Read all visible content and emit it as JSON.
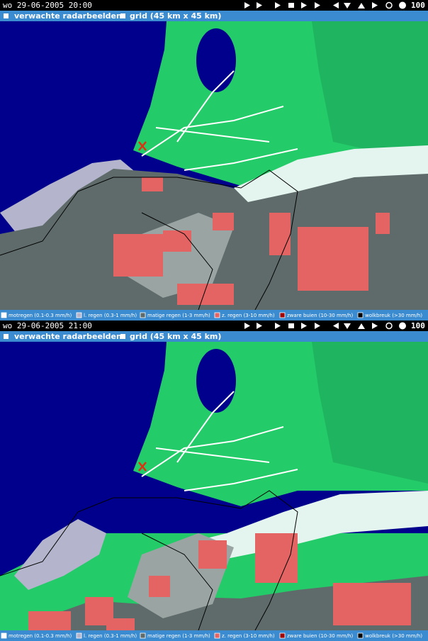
{
  "panels": [
    {
      "timestamp": "wo 29-06-2005 20:00",
      "zoom": "100",
      "tabs": [
        "verwachte radarbeelden",
        "grid (45 km x 45 km)"
      ],
      "legend": [
        {
          "label": "motregen (0.1-0.3 mm/h)",
          "color": "#ffffff"
        },
        {
          "label": "l. regen (0.3-1 mm/h)",
          "color": "#b4b4cc"
        },
        {
          "label": "matige regen (1-3 mm/h)",
          "color": "#5f6b6a"
        },
        {
          "label": "z. regen (3-10 mm/h)",
          "color": "#e46464"
        },
        {
          "label": "zware buien (10-30 mm/h)",
          "color": "#a00000"
        },
        {
          "label": "wolkbreuk (>30 mm/h)",
          "color": "#000000"
        }
      ]
    },
    {
      "timestamp": "wo 29-06-2005 21:00",
      "zoom": "100",
      "tabs": [
        "verwachte radarbeelden",
        "grid (45 km x 45 km)"
      ],
      "legend": [
        {
          "label": "motregen (0.1-0.3 mm/h)",
          "color": "#ffffff"
        },
        {
          "label": "l. regen (0.3-1 mm/h)",
          "color": "#b4b4cc"
        },
        {
          "label": "matige regen (1-3 mm/h)",
          "color": "#5f6b6a"
        },
        {
          "label": "z. regen (3-10 mm/h)",
          "color": "#e46464"
        },
        {
          "label": "zware buien (10-30 mm/h)",
          "color": "#a00000"
        },
        {
          "label": "wolkbreuk (>30 mm/h)",
          "color": "#000000"
        }
      ]
    }
  ]
}
